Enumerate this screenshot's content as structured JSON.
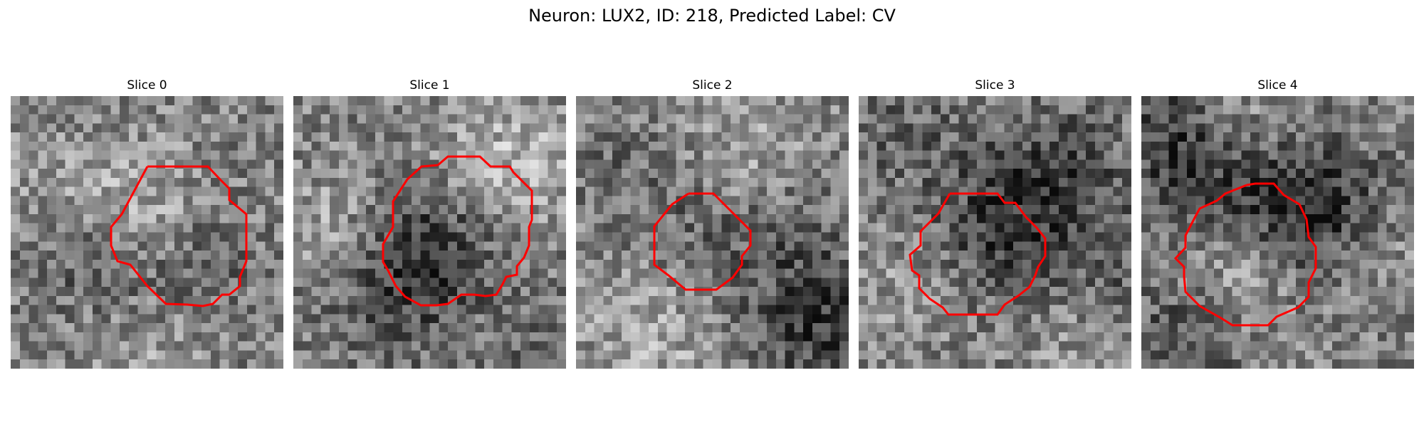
{
  "figure": {
    "title": "Neuron: LUX2, ID: 218, Predicted Label: CV"
  },
  "colors": {
    "contour": "#ff0000",
    "background": "#ffffff"
  },
  "panels": [
    {
      "title": "Slice 0"
    },
    {
      "title": "Slice 1"
    },
    {
      "title": "Slice 2"
    },
    {
      "title": "Slice 3"
    },
    {
      "title": "Slice 4"
    }
  ]
}
